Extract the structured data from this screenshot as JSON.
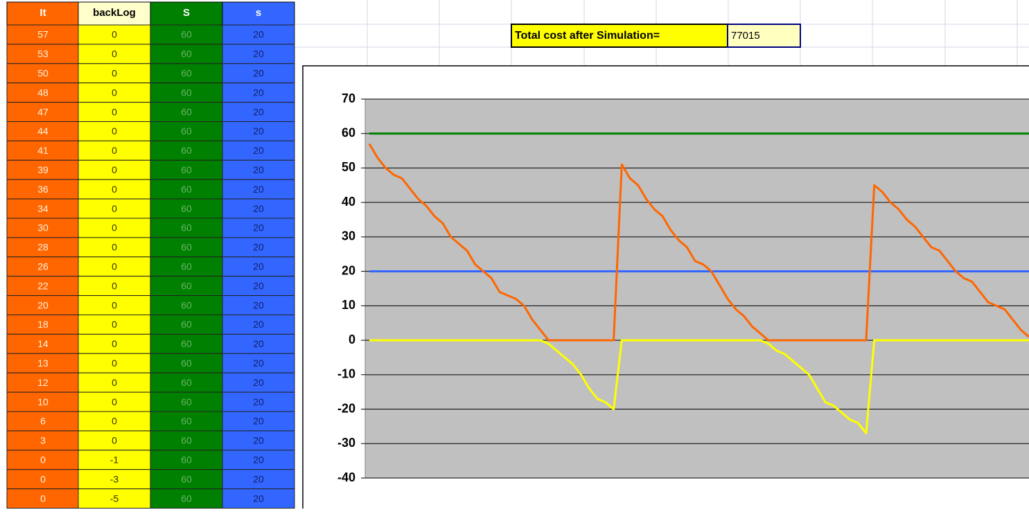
{
  "table": {
    "headers": [
      "It",
      "backLog",
      "S",
      "s"
    ],
    "rows": [
      [
        57,
        0,
        60,
        20
      ],
      [
        53,
        0,
        60,
        20
      ],
      [
        50,
        0,
        60,
        20
      ],
      [
        48,
        0,
        60,
        20
      ],
      [
        47,
        0,
        60,
        20
      ],
      [
        44,
        0,
        60,
        20
      ],
      [
        41,
        0,
        60,
        20
      ],
      [
        39,
        0,
        60,
        20
      ],
      [
        36,
        0,
        60,
        20
      ],
      [
        34,
        0,
        60,
        20
      ],
      [
        30,
        0,
        60,
        20
      ],
      [
        28,
        0,
        60,
        20
      ],
      [
        26,
        0,
        60,
        20
      ],
      [
        22,
        0,
        60,
        20
      ],
      [
        20,
        0,
        60,
        20
      ],
      [
        18,
        0,
        60,
        20
      ],
      [
        14,
        0,
        60,
        20
      ],
      [
        13,
        0,
        60,
        20
      ],
      [
        12,
        0,
        60,
        20
      ],
      [
        10,
        0,
        60,
        20
      ],
      [
        6,
        0,
        60,
        20
      ],
      [
        3,
        0,
        60,
        20
      ],
      [
        0,
        -1,
        60,
        20
      ],
      [
        0,
        -3,
        60,
        20
      ],
      [
        0,
        -5,
        60,
        20
      ]
    ]
  },
  "total": {
    "label": "Total cost after Simulation=",
    "value": 77015
  },
  "chart_data": {
    "type": "line",
    "categories": [
      null,
      null,
      null,
      null,
      null,
      null,
      null,
      null,
      null,
      null,
      null,
      null,
      null,
      null,
      null,
      null,
      null,
      null,
      null,
      null,
      null,
      null,
      null,
      null,
      null,
      null,
      null,
      null,
      null,
      null,
      null,
      null,
      null,
      null,
      null,
      null,
      null,
      null,
      null,
      null,
      null,
      null,
      null,
      null,
      null,
      null,
      null,
      null,
      null,
      null,
      null,
      null,
      null,
      null,
      null,
      null,
      null,
      null,
      null,
      null,
      null,
      null,
      null,
      null,
      null,
      null,
      null,
      null,
      null,
      null,
      null,
      null,
      null,
      null,
      null,
      null,
      null,
      null,
      null,
      null,
      null,
      null
    ],
    "series": [
      {
        "color": "#008000",
        "values": [
          60,
          60,
          60,
          60,
          60,
          60,
          60,
          60,
          60,
          60,
          60,
          60,
          60,
          60,
          60,
          60,
          60,
          60,
          60,
          60,
          60,
          60,
          60,
          60,
          60,
          60,
          60,
          60,
          60,
          60,
          60,
          60,
          60,
          60,
          60,
          60,
          60,
          60,
          60,
          60,
          60,
          60,
          60,
          60,
          60,
          60,
          60,
          60,
          60,
          60,
          60,
          60,
          60,
          60,
          60,
          60,
          60,
          60,
          60,
          60,
          60,
          60,
          60,
          60,
          60,
          60,
          60,
          60,
          60,
          60,
          60,
          60,
          60,
          60,
          60,
          60,
          60,
          60,
          60,
          60,
          60,
          60
        ]
      },
      {
        "color": "#3366ff",
        "values": [
          20,
          20,
          20,
          20,
          20,
          20,
          20,
          20,
          20,
          20,
          20,
          20,
          20,
          20,
          20,
          20,
          20,
          20,
          20,
          20,
          20,
          20,
          20,
          20,
          20,
          20,
          20,
          20,
          20,
          20,
          20,
          20,
          20,
          20,
          20,
          20,
          20,
          20,
          20,
          20,
          20,
          20,
          20,
          20,
          20,
          20,
          20,
          20,
          20,
          20,
          20,
          20,
          20,
          20,
          20,
          20,
          20,
          20,
          20,
          20,
          20,
          20,
          20,
          20,
          20,
          20,
          20,
          20,
          20,
          20,
          20,
          20,
          20,
          20,
          20,
          20,
          20,
          20,
          20,
          20,
          20,
          20
        ]
      },
      {
        "color": "#ffff00",
        "values": [
          0,
          0,
          0,
          0,
          0,
          0,
          0,
          0,
          0,
          0,
          0,
          0,
          0,
          0,
          0,
          0,
          0,
          0,
          0,
          0,
          0,
          0,
          -1,
          -3,
          -5,
          -7,
          -10,
          -14,
          -17,
          -18,
          -20,
          0,
          0,
          0,
          0,
          0,
          0,
          0,
          0,
          0,
          0,
          0,
          0,
          0,
          0,
          0,
          0,
          0,
          0,
          -1,
          -3,
          -4,
          -6,
          -8,
          -10,
          -14,
          -18,
          -19,
          -21,
          -23,
          -24,
          -27,
          0,
          0,
          0,
          0,
          0,
          0,
          0,
          0,
          0,
          0,
          0,
          0,
          0,
          0,
          0,
          0,
          0,
          0,
          0,
          0
        ]
      },
      {
        "color": "#ff6600",
        "values": [
          57,
          53,
          50,
          48,
          47,
          44,
          41,
          39,
          36,
          34,
          30,
          28,
          26,
          22,
          20,
          18,
          14,
          13,
          12,
          10,
          6,
          3,
          0,
          0,
          0,
          0,
          0,
          0,
          0,
          0,
          0,
          51,
          47,
          45,
          41,
          38,
          36,
          32,
          29,
          27,
          23,
          22,
          20,
          16,
          12,
          9,
          7,
          4,
          2,
          0,
          0,
          0,
          0,
          0,
          0,
          0,
          0,
          0,
          0,
          0,
          0,
          0,
          45,
          43,
          40,
          38,
          35,
          33,
          30,
          27,
          26,
          23,
          20,
          18,
          17,
          14,
          11,
          10,
          9,
          6,
          3,
          1
        ]
      }
    ],
    "ylim": [
      -40,
      70
    ],
    "yticks": [
      -40,
      -30,
      -20,
      -10,
      0,
      10,
      20,
      30,
      40,
      50,
      60,
      70
    ],
    "grid": true
  }
}
